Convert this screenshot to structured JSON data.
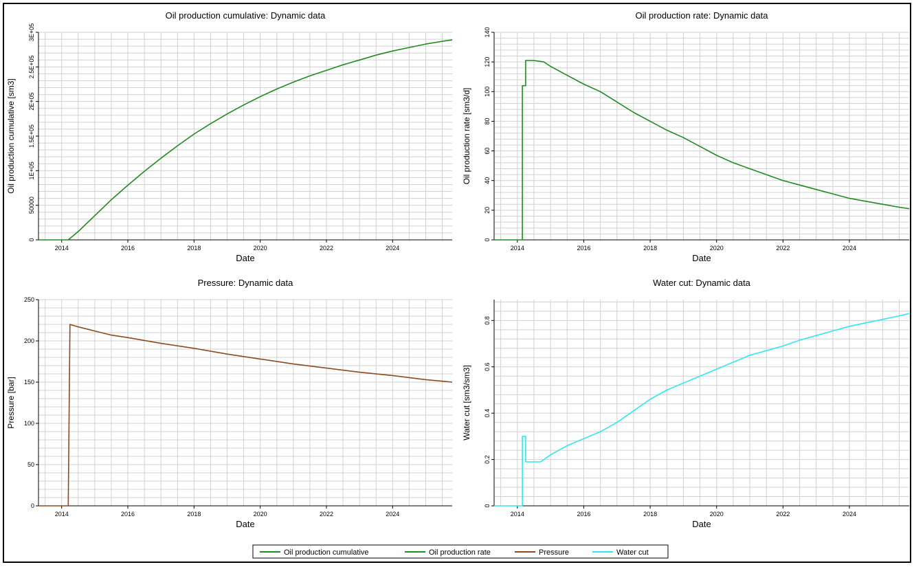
{
  "legend": {
    "items": [
      {
        "label": "Oil production cumulative",
        "color": "#1f8a1f"
      },
      {
        "label": "Oil production rate",
        "color": "#1f8a1f"
      },
      {
        "label": "Pressure",
        "color": "#8b4a1f"
      },
      {
        "label": "Water cut",
        "color": "#2fe8ee"
      }
    ]
  },
  "chart_data": [
    {
      "type": "line",
      "title": "Oil production cumulative: Dynamic data",
      "xlabel": "Date",
      "ylabel": "Oil production cumulative [sm3]",
      "xlim": [
        2013.3,
        2025.8
      ],
      "ylim": [
        0,
        300000
      ],
      "xticks": [
        2014,
        2016,
        2018,
        2020,
        2022,
        2024
      ],
      "yticks": [
        0,
        50000,
        100000,
        150000,
        200000,
        250000,
        300000
      ],
      "ytick_labels": [
        "0",
        "50000",
        "1E+05",
        "1.5E+05",
        "2E+05",
        "2.5E+05",
        "3E+05"
      ],
      "yrotate": true,
      "grid": true,
      "series": [
        {
          "name": "Oil production cumulative",
          "color": "#1f8a1f",
          "x": [
            2013.3,
            2014.2,
            2014.5,
            2015.0,
            2015.5,
            2016.0,
            2016.5,
            2017.0,
            2017.5,
            2018.0,
            2018.5,
            2019.0,
            2019.5,
            2020.0,
            2020.5,
            2021.0,
            2021.5,
            2022.0,
            2022.5,
            2023.0,
            2023.5,
            2024.0,
            2024.5,
            2025.0,
            2025.5,
            2025.8
          ],
          "y": [
            0,
            0,
            12000,
            35000,
            58000,
            79000,
            99000,
            118000,
            136000,
            153000,
            168000,
            182000,
            195000,
            207000,
            218000,
            228000,
            237000,
            245000,
            253000,
            260000,
            267000,
            273000,
            278000,
            283000,
            287000,
            289000
          ]
        }
      ]
    },
    {
      "type": "line",
      "title": "Oil production rate: Dynamic data",
      "xlabel": "Date",
      "ylabel": "Oil production rate [sm3/d]",
      "xlim": [
        2013.3,
        2025.8
      ],
      "ylim": [
        0,
        140
      ],
      "xticks": [
        2014,
        2016,
        2018,
        2020,
        2022,
        2024
      ],
      "yticks": [
        0,
        20,
        40,
        60,
        80,
        100,
        120,
        140
      ],
      "ytick_labels": [
        "0",
        "20",
        "40",
        "60",
        "80",
        "100",
        "120",
        "140"
      ],
      "yrotate": true,
      "grid": true,
      "step": true,
      "series": [
        {
          "name": "Oil production rate",
          "color": "#1f8a1f",
          "x": [
            2013.3,
            2014.15,
            2014.15,
            2014.25,
            2014.25,
            2014.5,
            2014.8,
            2015.0,
            2015.5,
            2016.0,
            2016.5,
            2017.0,
            2017.5,
            2018.0,
            2018.5,
            2019.0,
            2019.5,
            2020.0,
            2020.5,
            2021.0,
            2021.5,
            2022.0,
            2022.5,
            2023.0,
            2023.5,
            2024.0,
            2024.5,
            2025.0,
            2025.5,
            2025.8
          ],
          "y": [
            0,
            0,
            104,
            104,
            121,
            121,
            120,
            117,
            111,
            105,
            100,
            93,
            86,
            80,
            74,
            69,
            63,
            57,
            52,
            48,
            44,
            40,
            37,
            34,
            31,
            28,
            26,
            24,
            22,
            21
          ]
        }
      ]
    },
    {
      "type": "line",
      "title": "Pressure: Dynamic data",
      "xlabel": "Date",
      "ylabel": "Pressure [bar]",
      "xlim": [
        2013.3,
        2025.8
      ],
      "ylim": [
        0,
        250
      ],
      "xticks": [
        2014,
        2016,
        2018,
        2020,
        2022,
        2024
      ],
      "yticks": [
        0,
        50,
        100,
        150,
        200,
        250
      ],
      "ytick_labels": [
        "0",
        "50",
        "100",
        "150",
        "200",
        "250"
      ],
      "yrotate": false,
      "grid": true,
      "series": [
        {
          "name": "Pressure",
          "color": "#8b4a1f",
          "x": [
            2013.3,
            2014.2,
            2014.25,
            2014.5,
            2015.0,
            2015.5,
            2016.0,
            2017.0,
            2018.0,
            2019.0,
            2020.0,
            2021.0,
            2022.0,
            2023.0,
            2024.0,
            2025.0,
            2025.8
          ],
          "y": [
            0,
            0,
            220,
            217,
            212,
            207,
            204,
            197,
            191,
            184,
            178,
            172,
            167,
            162,
            158,
            153,
            150
          ]
        }
      ]
    },
    {
      "type": "line",
      "title": "Water cut: Dynamic data",
      "xlabel": "Date",
      "ylabel": "Water cut [sm3/sm3]",
      "xlim": [
        2013.3,
        2025.8
      ],
      "ylim": [
        0,
        0.89
      ],
      "xticks": [
        2014,
        2016,
        2018,
        2020,
        2022,
        2024
      ],
      "yticks": [
        0,
        0.2,
        0.4,
        0.6,
        0.8
      ],
      "ytick_labels": [
        "0",
        "0.2",
        "0.4",
        "0.6",
        "0.8"
      ],
      "yrotate": true,
      "grid": true,
      "series": [
        {
          "name": "Water cut",
          "color": "#2fe8ee",
          "x": [
            2013.3,
            2014.15,
            2014.15,
            2014.25,
            2014.25,
            2014.4,
            2014.7,
            2015.0,
            2015.5,
            2016.0,
            2016.5,
            2017.0,
            2017.5,
            2018.0,
            2018.5,
            2019.0,
            2019.5,
            2020.0,
            2020.5,
            2021.0,
            2021.5,
            2022.0,
            2022.5,
            2023.0,
            2023.5,
            2024.0,
            2024.5,
            2025.0,
            2025.5,
            2025.8
          ],
          "y": [
            0,
            0,
            0.3,
            0.3,
            0.19,
            0.19,
            0.19,
            0.22,
            0.26,
            0.29,
            0.32,
            0.36,
            0.41,
            0.46,
            0.5,
            0.53,
            0.56,
            0.59,
            0.62,
            0.65,
            0.67,
            0.69,
            0.715,
            0.735,
            0.755,
            0.775,
            0.79,
            0.805,
            0.82,
            0.83
          ]
        }
      ]
    }
  ]
}
